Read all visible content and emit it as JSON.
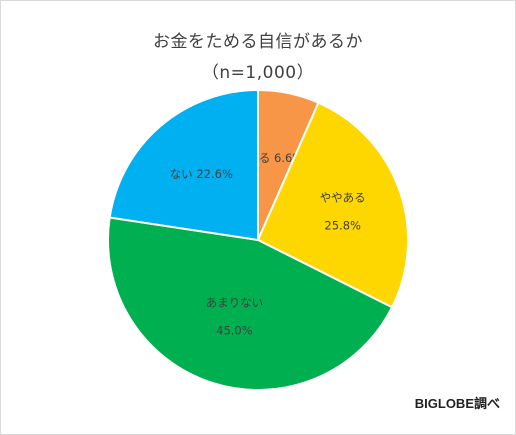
{
  "chart_data": {
    "type": "pie",
    "title": "お金をためる自信があるか",
    "subtitle": "（n=1,000）",
    "slices": [
      {
        "label": "ある",
        "value": 6.6,
        "display": "6.6%",
        "color": "#F79646"
      },
      {
        "label": "ややある",
        "value": 25.8,
        "display": "25.8%",
        "color": "#FFD700"
      },
      {
        "label": "あまりない",
        "value": 45.0,
        "display": "45.0%",
        "color": "#00B050"
      },
      {
        "label": "ない",
        "value": 22.6,
        "display": "22.6%",
        "color": "#00B0F0"
      }
    ],
    "source": "BIGLOBE調べ"
  }
}
